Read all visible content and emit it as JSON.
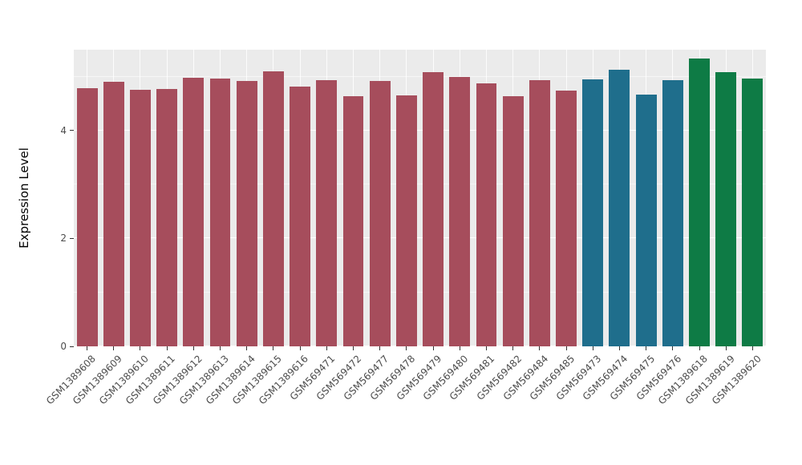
{
  "chart_data": {
    "type": "bar",
    "ylabel": "Expression Level",
    "xlabel": "",
    "ylim": [
      0,
      5.5
    ],
    "yticks": [
      0,
      2,
      4
    ],
    "ytick_labels": [
      "0",
      "2",
      "4"
    ],
    "yticks_minor": [
      1,
      3,
      5
    ],
    "grid": true,
    "legend_position": "none",
    "panel_bg": "#EBEBEB",
    "categories": [
      "GSM1389608",
      "GSM1389609",
      "GSM1389610",
      "GSM1389611",
      "GSM1389612",
      "GSM1389613",
      "GSM1389614",
      "GSM1389615",
      "GSM1389616",
      "GSM569471",
      "GSM569472",
      "GSM569477",
      "GSM569478",
      "GSM569479",
      "GSM569480",
      "GSM569481",
      "GSM569482",
      "GSM569484",
      "GSM569485",
      "GSM569473",
      "GSM569474",
      "GSM569475",
      "GSM569476",
      "GSM1389618",
      "GSM1389619",
      "GSM1389620"
    ],
    "values": [
      4.79,
      4.91,
      4.76,
      4.77,
      4.98,
      4.97,
      4.92,
      5.1,
      4.82,
      4.94,
      4.64,
      4.92,
      4.65,
      5.08,
      5.0,
      4.88,
      4.64,
      4.94,
      4.74,
      4.95,
      5.13,
      4.67,
      4.94,
      5.34,
      5.08,
      4.97
    ],
    "groups": [
      {
        "name": "group-1",
        "color": "#A64D5C",
        "from": 0,
        "to": 18
      },
      {
        "name": "group-2",
        "color": "#1F6E8C",
        "from": 19,
        "to": 22
      },
      {
        "name": "group-3",
        "color": "#0E7B45",
        "from": 23,
        "to": 25
      }
    ]
  }
}
